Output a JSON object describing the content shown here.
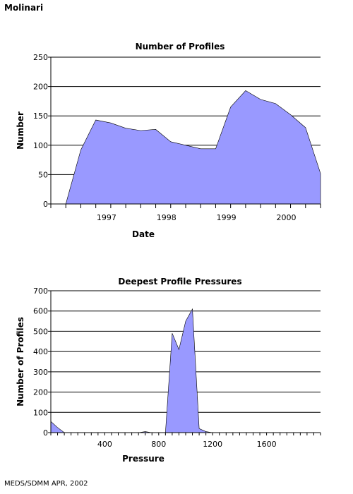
{
  "header": {
    "title": "Molinari"
  },
  "footer": {
    "credit": "MEDS/SDMM APR, 2002"
  },
  "chart_data": [
    {
      "type": "area",
      "title": "Number of Profiles",
      "xlabel": "Date",
      "ylabel": "Number",
      "x_unit": "year",
      "x": [
        1996.75,
        1997.0,
        1997.25,
        1997.5,
        1997.75,
        1998.0,
        1998.25,
        1998.5,
        1998.75,
        1999.0,
        1999.25,
        1999.5,
        1999.75,
        2000.0,
        2000.25,
        2000.5,
        2000.75,
        2001.0
      ],
      "values": [
        0,
        92,
        143,
        138,
        129,
        125,
        127,
        106,
        100,
        94,
        94,
        165,
        193,
        178,
        171,
        152,
        130,
        52
      ],
      "xlim": [
        1996.5,
        2001.0
      ],
      "ylim": [
        0,
        250
      ],
      "yticks": [
        0,
        50,
        100,
        150,
        200,
        250
      ],
      "xticks": [
        1997,
        1998,
        1999,
        2000
      ],
      "grid": "horizontal",
      "fill": "#9999ff"
    },
    {
      "type": "area",
      "title": "Deepest Profile Pressures",
      "xlabel": "Pressure",
      "ylabel": "Number of Profiles",
      "x": [
        0,
        50,
        100,
        150,
        200,
        250,
        300,
        350,
        400,
        450,
        500,
        550,
        600,
        650,
        700,
        750,
        800,
        850,
        900,
        950,
        1000,
        1050,
        1100,
        1150,
        1200,
        1250,
        1300,
        1400,
        1500,
        1600,
        1700,
        1800,
        1900,
        2000
      ],
      "values": [
        55,
        25,
        0,
        0,
        0,
        0,
        0,
        0,
        0,
        0,
        0,
        0,
        0,
        0,
        5,
        0,
        0,
        0,
        490,
        410,
        550,
        610,
        20,
        5,
        0,
        0,
        0,
        0,
        0,
        0,
        0,
        0,
        0,
        0
      ],
      "xlim": [
        0,
        2000
      ],
      "ylim": [
        0,
        700
      ],
      "yticks": [
        0,
        100,
        200,
        300,
        400,
        500,
        600,
        700
      ],
      "xticks": [
        400,
        800,
        1200,
        1600
      ],
      "grid": "horizontal",
      "fill": "#9999ff"
    }
  ]
}
